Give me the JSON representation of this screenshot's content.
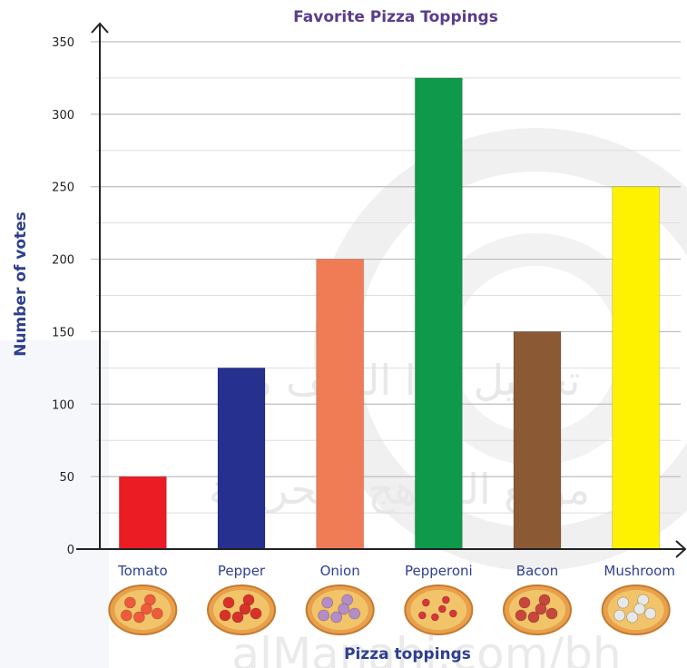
{
  "colors": {
    "title": "#5a3c8c",
    "axis_text": "#2e3f8f",
    "grid": "#cfcfcf",
    "axis": "#222222",
    "watermark": "#dcdcdc"
  },
  "chart_data": {
    "type": "bar",
    "title": "Favorite Pizza Toppings",
    "xlabel": "Pizza toppings",
    "ylabel": "Number of votes",
    "categories": [
      "Tomato",
      "Pepper",
      "Onion",
      "Pepperoni",
      "Bacon",
      "Mushroom"
    ],
    "values": [
      50,
      125,
      200,
      325,
      150,
      250
    ],
    "colors": [
      "#ec1c24",
      "#25308f",
      "#f07c56",
      "#0e9a4a",
      "#8b5a35",
      "#fff200"
    ],
    "topping_icons": [
      "tomato-pizza-icon",
      "pepper-pizza-icon",
      "onion-pizza-icon",
      "pepperoni-pizza-icon",
      "bacon-pizza-icon",
      "mushroom-pizza-icon"
    ],
    "ylim": [
      0,
      350
    ],
    "yticks": [
      0,
      50,
      100,
      150,
      200,
      250,
      300,
      350
    ],
    "minor_gridlines": true,
    "grid": true,
    "legend": "none"
  },
  "watermark": {
    "line1": "تحميل هذا الملف من",
    "line2": "موقع المناهج البحرينية",
    "line3": "alManahj.com/bh"
  }
}
